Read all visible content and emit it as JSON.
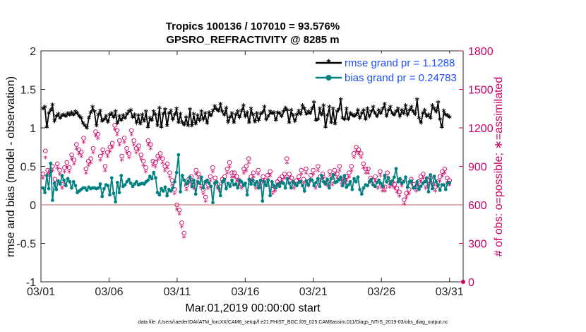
{
  "chart_data": {
    "type": "line",
    "title": "Tropics 100136 / 107010 = 93.576%",
    "subtitle": "GPSRO_REFRACTIVITY @ 8285 m",
    "xlabel": "Mar.01,2019 00:00:00 start",
    "ylabel_left": "rmse and bias (model - observation)",
    "ylabel_right": "# of obs: o=possible; ∗=assimilated",
    "footnote": "data file: /Users/raeder/DAI/ATM_forcXX/CAM6_setup/f.e21.FHIST_BGC.f09_025.CAM6assim.011/Diags_NTrS_2019-03/obs_diag_output.nc",
    "x_ticks": [
      {
        "day": 1,
        "label": "03/01"
      },
      {
        "day": 6,
        "label": "03/06"
      },
      {
        "day": 11,
        "label": "03/11"
      },
      {
        "day": 16,
        "label": "03/16"
      },
      {
        "day": 21,
        "label": "03/21"
      },
      {
        "day": 26,
        "label": "03/26"
      },
      {
        "day": 31,
        "label": "03/31"
      }
    ],
    "xlim": [
      1,
      32
    ],
    "y_left_ticks": [
      "-1",
      "-0.5",
      "0",
      "0.5",
      "1",
      "1.5",
      "2"
    ],
    "ylim_left": [
      -1,
      2
    ],
    "y_right_ticks": [
      "0",
      "300",
      "600",
      "900",
      "1200",
      "1500",
      "1800"
    ],
    "ylim_right": [
      0,
      1800
    ],
    "zero_line": 0,
    "colors": {
      "rmse": "#000000",
      "bias": "#008080",
      "obs": "#cc0066",
      "legend_text": "#1f4fff",
      "zero_line": "#d08080"
    },
    "series": [
      {
        "name": "rmse grand pr = 1.1288",
        "axis": "left",
        "marker": "asterisk",
        "values": [
          1.24,
          1.26,
          1.0,
          1.18,
          1.22,
          1.29,
          1.08,
          1.14,
          1.17,
          1.12,
          1.15,
          1.16,
          1.14,
          1.18,
          1.16,
          1.19,
          1.16,
          1.2,
          1.18,
          1.14,
          1.12,
          1.05,
          1.02,
          0.99,
          1.12,
          1.19,
          1.26,
          1.2,
          1.02,
          1.16,
          1.21,
          1.08,
          1.1,
          1.14,
          1.07,
          1.16,
          1.18,
          1.13,
          1.2,
          1.05,
          1.14,
          1.09,
          1.15,
          1.12,
          1.17,
          1.2,
          1.22,
          1.13,
          1.16,
          1.06,
          1.15,
          1.04,
          1.16,
          1.08,
          1.2,
          1.0,
          1.12,
          1.09,
          1.2,
          1.16,
          1.02,
          1.25,
          1.0,
          1.17,
          1.23,
          1.02,
          1.18,
          1.21,
          1.1,
          1.16,
          1.24,
          1.06,
          1.17,
          1.06,
          1.03,
          1.13,
          1.02,
          1.23,
          1.02,
          1.17,
          1.04,
          1.15,
          1.09,
          1.2,
          1.1,
          1.18,
          1.05,
          1.19,
          1.15,
          1.21,
          1.27,
          1.23,
          1.21,
          1.3,
          1.2,
          1.16,
          1.25,
          1.07,
          1.13,
          1.18,
          1.06,
          1.16,
          1.2,
          1.13,
          1.21,
          1.28,
          1.14,
          1.19,
          1.06,
          1.24,
          1.16,
          1.07,
          1.18,
          1.09,
          1.17,
          1.19,
          1.26,
          1.1,
          1.14,
          1.2,
          1.18,
          1.19,
          1.09,
          1.19,
          1.18,
          1.14,
          1.2,
          1.25,
          1.22,
          1.06,
          1.22,
          1.15,
          1.08,
          1.16,
          1.21,
          1.17,
          1.28,
          1.24,
          1.17,
          1.2,
          1.18,
          1.24,
          1.32,
          1.09,
          1.1,
          1.24,
          1.16,
          1.28,
          1.0,
          1.15,
          1.26,
          1.06,
          1.24,
          1.04,
          1.2,
          1.23,
          1.36,
          1.12,
          1.1,
          1.24,
          1.1,
          1.18,
          1.16,
          1.14,
          1.16,
          1.22,
          1.12,
          1.18,
          1.22,
          1.1,
          1.24,
          1.14,
          1.2,
          1.26,
          1.18,
          1.14,
          1.22,
          1.18,
          1.24,
          1.3,
          1.14,
          1.22,
          1.26,
          1.18,
          1.16,
          1.2,
          1.24,
          1.14,
          1.22,
          1.18,
          1.28,
          1.16,
          1.22,
          1.26,
          1.2,
          1.17,
          1.36,
          1.12,
          1.06,
          1.18,
          1.22,
          1.14,
          1.16,
          1.12,
          1.28,
          1.24,
          1.2,
          1.32,
          1.1,
          1.0,
          1.21,
          1.16,
          1.15,
          1.13
        ]
      },
      {
        "name": "bias grand pr = 0.24783",
        "axis": "left",
        "marker": "filled-circle",
        "values": [
          0.22,
          0.16,
          0.38,
          0.21,
          0.54,
          0.06,
          0.28,
          0.2,
          0.31,
          0.27,
          0.38,
          0.32,
          0.25,
          0.34,
          0.3,
          0.22,
          0.3,
          0.25,
          0.16,
          0.18,
          0.2,
          0.22,
          0.22,
          0.19,
          0.23,
          0.21,
          0.22,
          0.22,
          0.21,
          0.22,
          0.27,
          0.11,
          0.21,
          0.26,
          0.25,
          0.13,
          0.35,
          0.15,
          0.04,
          0.29,
          0.16,
          0.38,
          0.24,
          0.26,
          0.3,
          0.33,
          0.28,
          0.24,
          0.27,
          0.3,
          0.26,
          0.27,
          0.28,
          0.27,
          0.3,
          0.32,
          0.37,
          0.34,
          0.42,
          0.35,
          0.16,
          0.13,
          0.21,
          0.18,
          0.23,
          0.12,
          0.2,
          0.18,
          0.22,
          0.3,
          0.42,
          0.65,
          0.17,
          0.38,
          0.32,
          0.27,
          0.3,
          0.36,
          0.24,
          0.32,
          0.14,
          0.3,
          0.28,
          0.36,
          0.22,
          0.3,
          0.32,
          0.28,
          0.24,
          0.03,
          0.28,
          0.3,
          0.22,
          0.12,
          0.3,
          0.33,
          0.21,
          0.28,
          0.24,
          0.32,
          0.26,
          0.27,
          0.22,
          0.32,
          0.3,
          0.25,
          0.28,
          0.13,
          0.33,
          0.27,
          0.32,
          0.26,
          0.3,
          0.22,
          0.32,
          0.05,
          0.3,
          0.25,
          0.32,
          0.12,
          0.3,
          0.25,
          0.22,
          0.27,
          0.24,
          0.29,
          0.28,
          0.22,
          0.34,
          0.28,
          0.22,
          0.3,
          0.27,
          0.25,
          0.29,
          0.3,
          0.25,
          0.18,
          0.31,
          0.26,
          0.33,
          0.32,
          0.25,
          0.29,
          0.34,
          0.24,
          0.38,
          0.3,
          0.27,
          0.33,
          0.22,
          0.34,
          0.39,
          0.29,
          0.3,
          0.33,
          0.36,
          0.25,
          0.38,
          0.23,
          0.26,
          0.3,
          0.2,
          0.34,
          0.3,
          0.36,
          0.2,
          0.14,
          0.22,
          0.26,
          0.25,
          0.3,
          0.33,
          0.26,
          0.24,
          0.29,
          0.32,
          0.28,
          0.24,
          0.38,
          0.3,
          0.35,
          0.27,
          0.31,
          0.36,
          0.47,
          0.3,
          0.34,
          0.28,
          0.3,
          0.36,
          0.23,
          0.3,
          0.31,
          0.22,
          0.22,
          0.3,
          0.2,
          0.24,
          0.28,
          0.3,
          0.35,
          0.17,
          0.39,
          0.21,
          0.37,
          0.3,
          0.26,
          0.19,
          0.26,
          0.26,
          0.2,
          0.28,
          0.29
        ]
      },
      {
        "name": "possible obs",
        "axis": "right",
        "marker": "open-circle",
        "values": [
          840,
          1020,
          870,
          860,
          900,
          800,
          920,
          870,
          760,
          890,
          930,
          890,
          990,
          950,
          1070,
          1030,
          1010,
          1120,
          880,
          940,
          960,
          1040,
          1170,
          1150,
          980,
          1030,
          900,
          1010,
          1050,
          1080,
          1220,
          1180,
          1100,
          980,
          1120,
          1040,
          1000,
          1180,
          1100,
          1040,
          1060,
          990,
          940,
          890,
          1100,
          1070,
          940,
          930,
          980,
          1000,
          960,
          900,
          920,
          850,
          790,
          720,
          600,
          560,
          460,
          380,
          750,
          800,
          820,
          760,
          870,
          840,
          770,
          720,
          660,
          760,
          820,
          890,
          810,
          760,
          740,
          800,
          820,
          880,
          930,
          850,
          850,
          820,
          790,
          760,
          880,
          900,
          960,
          820,
          850,
          760,
          870,
          770,
          820,
          790,
          830,
          860,
          720,
          740,
          780,
          800,
          820,
          840,
          960,
          840,
          810,
          760,
          790,
          820,
          870,
          800,
          880,
          780,
          830,
          870,
          760,
          900,
          820,
          840,
          800,
          780,
          860,
          790,
          870,
          840,
          900,
          780,
          800,
          820,
          850,
          900,
          1000,
          1050,
          1030,
          1000,
          920,
          880,
          880,
          810,
          790,
          820,
          760,
          860,
          740,
          740,
          850,
          770,
          780,
          760,
          730,
          700,
          780,
          640,
          690,
          720,
          800,
          760,
          740,
          780,
          820,
          840,
          760,
          790,
          810,
          760,
          740,
          780,
          820,
          860,
          880,
          810,
          790
        ]
      },
      {
        "name": "assimilated obs",
        "axis": "right",
        "marker": "asterisk",
        "values": [
          800,
          960,
          830,
          820,
          860,
          760,
          880,
          830,
          720,
          850,
          890,
          850,
          950,
          910,
          1030,
          990,
          970,
          1080,
          840,
          900,
          920,
          1000,
          1130,
          1110,
          940,
          990,
          860,
          970,
          1010,
          1040,
          1180,
          1140,
          1060,
          940,
          1080,
          1000,
          960,
          1140,
          1060,
          1000,
          1020,
          950,
          900,
          850,
          1060,
          1030,
          900,
          890,
          940,
          960,
          920,
          860,
          880,
          810,
          750,
          680,
          560,
          520,
          420,
          340,
          710,
          760,
          780,
          720,
          830,
          800,
          730,
          680,
          620,
          720,
          780,
          850,
          770,
          720,
          700,
          760,
          780,
          840,
          890,
          810,
          810,
          780,
          750,
          720,
          840,
          860,
          920,
          780,
          810,
          720,
          830,
          730,
          780,
          750,
          790,
          820,
          680,
          700,
          740,
          760,
          780,
          800,
          920,
          800,
          770,
          720,
          750,
          780,
          830,
          760,
          840,
          740,
          790,
          830,
          720,
          860,
          780,
          800,
          760,
          740,
          820,
          750,
          830,
          800,
          860,
          740,
          760,
          780,
          810,
          860,
          960,
          1010,
          990,
          960,
          880,
          840,
          840,
          770,
          750,
          780,
          720,
          820,
          700,
          700,
          810,
          730,
          740,
          720,
          690,
          660,
          740,
          600,
          650,
          680,
          760,
          720,
          700,
          740,
          780,
          800,
          720,
          750,
          770,
          720,
          700,
          740,
          780,
          820,
          840,
          770,
          750
        ]
      }
    ],
    "legend": {
      "position": "top-right",
      "entries": [
        "rmse grand pr = 1.1288",
        "bias grand pr = 0.24783"
      ]
    }
  }
}
